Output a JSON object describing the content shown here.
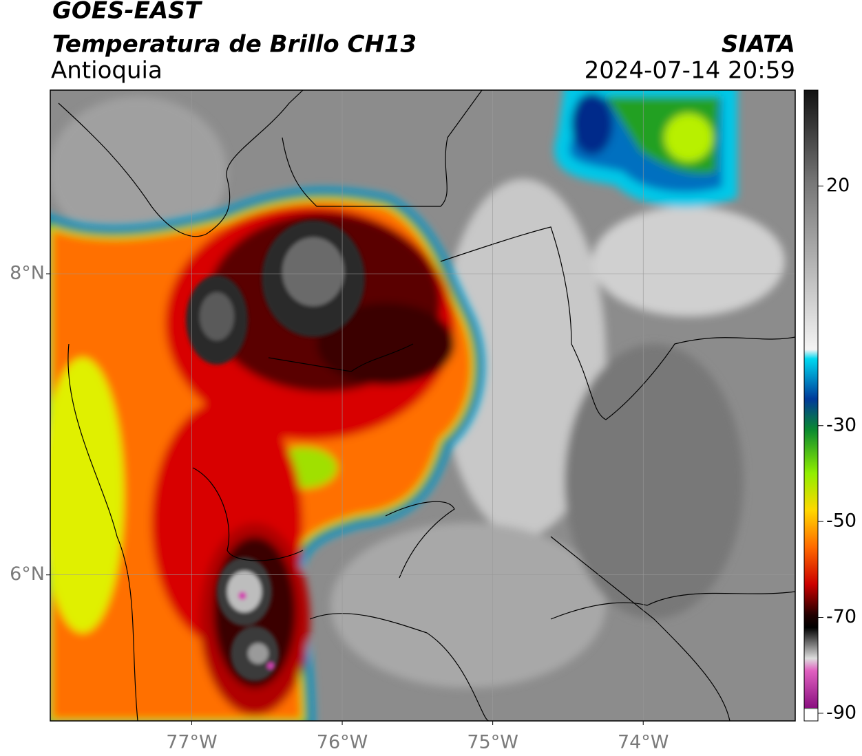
{
  "header": {
    "title": "GOES-EAST",
    "subtitle": "Temperatura de Brillo CH13",
    "region": "Antioquia",
    "source": "SIATA",
    "datetime": "2024-07-14 20:59"
  },
  "map": {
    "xlim": [
      -77.94,
      -72.99
    ],
    "ylim": [
      5.03,
      9.22
    ],
    "xticks": [
      {
        "value": -77,
        "label": "77°W"
      },
      {
        "value": -76,
        "label": "76°W"
      },
      {
        "value": -75,
        "label": "75°W"
      },
      {
        "value": -74,
        "label": "74°W"
      }
    ],
    "yticks": [
      {
        "value": 6,
        "label": "6°N"
      },
      {
        "value": 8,
        "label": "8°N"
      }
    ],
    "grid": true
  },
  "colorbar": {
    "lim": [
      -91.6,
      40
    ],
    "ticks": [
      20,
      -30,
      -50,
      -70,
      -90
    ]
  }
}
